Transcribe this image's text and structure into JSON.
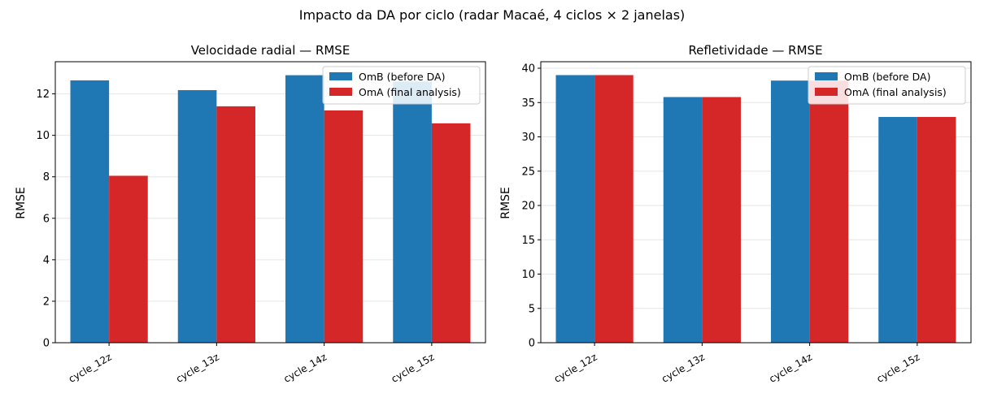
{
  "figure": {
    "suptitle": "Impacto da DA por ciclo (radar Macaé, 4 ciclos × 2 janelas)"
  },
  "colors": {
    "omb": "#1f77b4",
    "oma": "#d62728",
    "grid": "#e6e6e6"
  },
  "chart_data": [
    {
      "type": "bar",
      "title": "Velocidade radial — RMSE",
      "xlabel": "",
      "ylabel": "RMSE",
      "categories": [
        "cycle_12z",
        "cycle_13z",
        "cycle_14z",
        "cycle_15z"
      ],
      "series": [
        {
          "name": "OmB (before DA)",
          "values": [
            12.65,
            12.18,
            12.9,
            12.6
          ]
        },
        {
          "name": "OmA (final analysis)",
          "values": [
            8.05,
            11.4,
            11.2,
            10.58
          ]
        }
      ],
      "ylim": [
        0,
        13.55
      ],
      "yticks": [
        0,
        2,
        4,
        6,
        8,
        10,
        12
      ],
      "grid": "y",
      "legend": "upper right"
    },
    {
      "type": "bar",
      "title": "Refletividade — RMSE",
      "xlabel": "",
      "ylabel": "RMSE",
      "categories": [
        "cycle_12z",
        "cycle_13z",
        "cycle_14z",
        "cycle_15z"
      ],
      "series": [
        {
          "name": "OmB (before DA)",
          "values": [
            39.0,
            35.8,
            38.2,
            32.9
          ]
        },
        {
          "name": "OmA (final analysis)",
          "values": [
            39.0,
            35.8,
            38.2,
            32.9
          ]
        }
      ],
      "ylim": [
        0,
        40.95
      ],
      "yticks": [
        0,
        5,
        10,
        15,
        20,
        25,
        30,
        35,
        40
      ],
      "grid": "y",
      "legend": "upper right"
    }
  ]
}
